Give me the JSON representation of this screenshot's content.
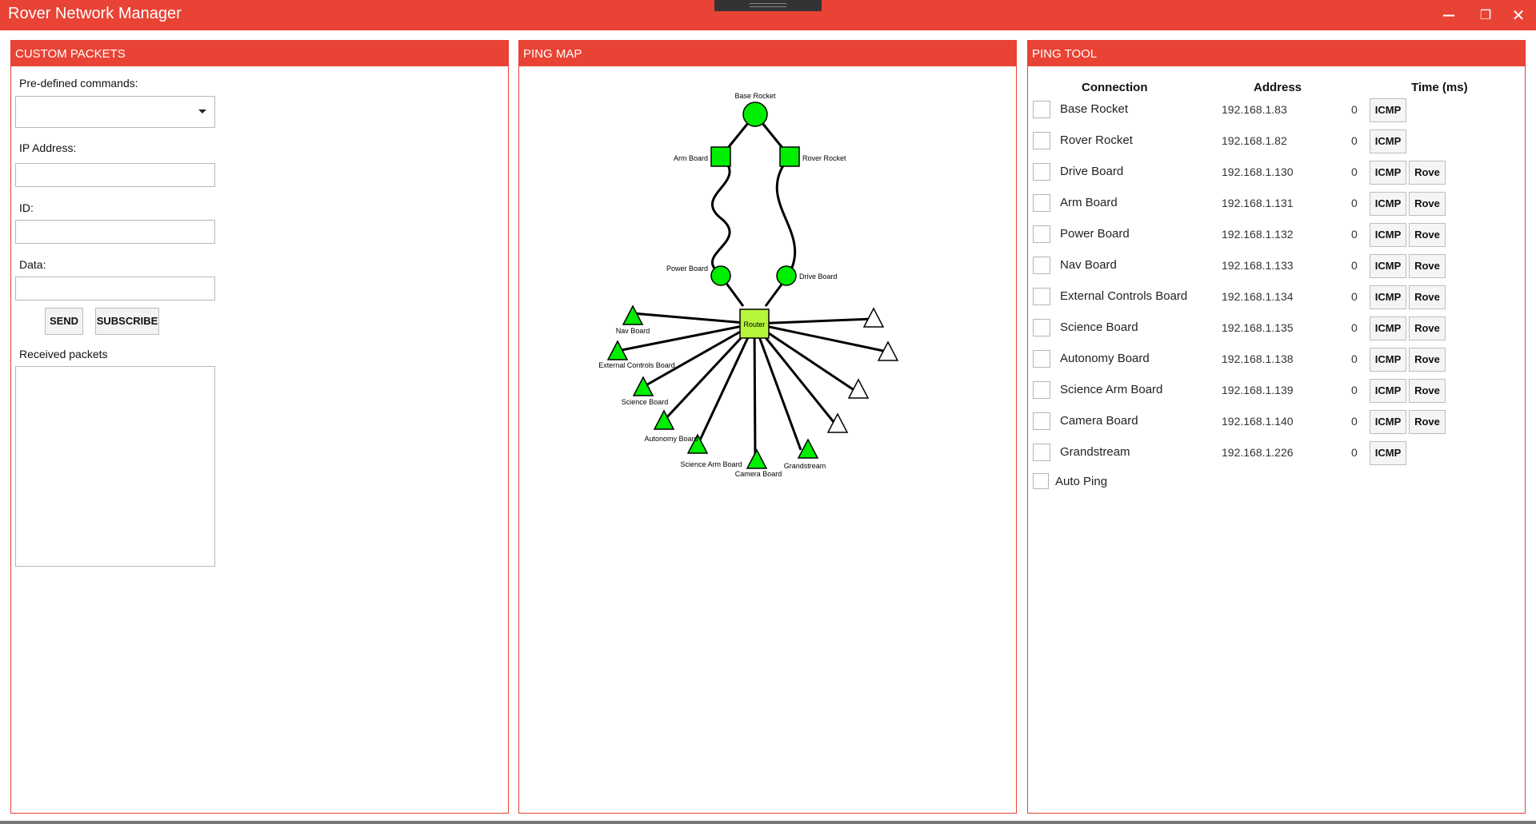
{
  "app": {
    "title": "Rover Network Manager"
  },
  "window_controls": {
    "minimize": "—",
    "restore": "❐",
    "close": "✕"
  },
  "custom_packets": {
    "header": "CUSTOM PACKETS",
    "commands_label": "Pre-defined commands:",
    "commands_value": "",
    "ip_label": "IP Address:",
    "ip_value": "",
    "id_label": "ID:",
    "id_value": "",
    "data_label": "Data:",
    "data_value": "",
    "send_label": "SEND",
    "subscribe_label": "SUBSCRIBE",
    "received_label": "Received packets"
  },
  "ping_map": {
    "header": "PING MAP",
    "router_label": "Router",
    "colors": {
      "online": "#00ee00",
      "router": "#b6f53b",
      "offline": "#ffffff",
      "edge": "#000000"
    },
    "nodes": [
      {
        "id": "base",
        "label": "Base Rocket",
        "shape": "circle",
        "status": "online"
      },
      {
        "id": "arm",
        "label": "Arm Board",
        "shape": "square",
        "status": "online"
      },
      {
        "id": "roverRocket",
        "label": "Rover Rocket",
        "shape": "square",
        "status": "online"
      },
      {
        "id": "power",
        "label": "Power Board",
        "shape": "circle",
        "status": "online"
      },
      {
        "id": "drive",
        "label": "Drive Board",
        "shape": "circle",
        "status": "online"
      },
      {
        "id": "nav",
        "label": "Nav Board",
        "shape": "triangle",
        "status": "online"
      },
      {
        "id": "ext",
        "label": "External Controls Board",
        "shape": "triangle",
        "status": "online"
      },
      {
        "id": "sci",
        "label": "Science Board",
        "shape": "triangle",
        "status": "online"
      },
      {
        "id": "auto",
        "label": "Autonomy Board",
        "shape": "triangle",
        "status": "online"
      },
      {
        "id": "sciarm",
        "label": "Science Arm Board",
        "shape": "triangle",
        "status": "online"
      },
      {
        "id": "cam",
        "label": "Camera Board",
        "shape": "triangle",
        "status": "online"
      },
      {
        "id": "grand",
        "label": "Grandstream",
        "shape": "triangle",
        "status": "online"
      },
      {
        "id": "o1",
        "label": "",
        "shape": "triangle",
        "status": "offline"
      },
      {
        "id": "o2",
        "label": "",
        "shape": "triangle",
        "status": "offline"
      },
      {
        "id": "o3",
        "label": "",
        "shape": "triangle",
        "status": "offline"
      },
      {
        "id": "o4",
        "label": "",
        "shape": "triangle",
        "status": "offline"
      }
    ]
  },
  "ping_tool": {
    "header": "PING TOOL",
    "columns": {
      "connection": "Connection",
      "address": "Address",
      "time": "Time (ms)"
    },
    "rows": [
      {
        "name": "Base Rocket",
        "address": "192.168.1.83",
        "time": "0",
        "icmp": "ICMP",
        "rove": ""
      },
      {
        "name": "Rover Rocket",
        "address": "192.168.1.82",
        "time": "0",
        "icmp": "ICMP",
        "rove": ""
      },
      {
        "name": "Drive Board",
        "address": "192.168.1.130",
        "time": "0",
        "icmp": "ICMP",
        "rove": "Rove"
      },
      {
        "name": "Arm Board",
        "address": "192.168.1.131",
        "time": "0",
        "icmp": "ICMP",
        "rove": "Rove"
      },
      {
        "name": "Power Board",
        "address": "192.168.1.132",
        "time": "0",
        "icmp": "ICMP",
        "rove": "Rove"
      },
      {
        "name": "Nav Board",
        "address": "192.168.1.133",
        "time": "0",
        "icmp": "ICMP",
        "rove": "Rove"
      },
      {
        "name": "External Controls Board",
        "address": "192.168.1.134",
        "time": "0",
        "icmp": "ICMP",
        "rove": "Rove"
      },
      {
        "name": "Science Board",
        "address": "192.168.1.135",
        "time": "0",
        "icmp": "ICMP",
        "rove": "Rove"
      },
      {
        "name": "Autonomy Board",
        "address": "192.168.1.138",
        "time": "0",
        "icmp": "ICMP",
        "rove": "Rove"
      },
      {
        "name": "Science Arm Board",
        "address": "192.168.1.139",
        "time": "0",
        "icmp": "ICMP",
        "rove": "Rove"
      },
      {
        "name": "Camera Board",
        "address": "192.168.1.140",
        "time": "0",
        "icmp": "ICMP",
        "rove": "Rove"
      },
      {
        "name": "Grandstream",
        "address": "192.168.1.226",
        "time": "0",
        "icmp": "ICMP",
        "rove": ""
      }
    ],
    "auto_ping_label": "Auto Ping"
  }
}
